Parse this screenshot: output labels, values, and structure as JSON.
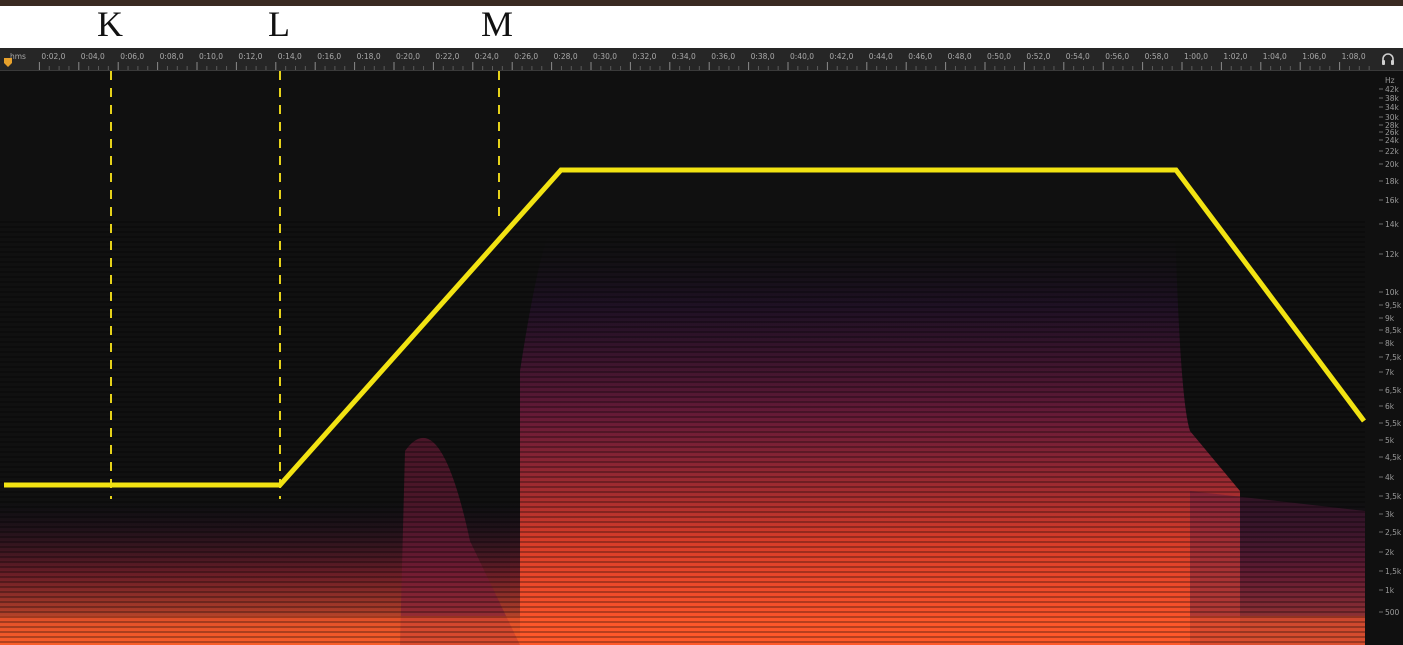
{
  "markers": [
    {
      "label": "K",
      "time": "0:05,0"
    },
    {
      "label": "L",
      "time": "0:14,0"
    },
    {
      "label": "M",
      "time": "0:25,0"
    }
  ],
  "ruler": {
    "unit": "hms",
    "ticks": [
      "0:02,0",
      "0:04,0",
      "0:06,0",
      "0:08,0",
      "0:10,0",
      "0:12,0",
      "0:14,0",
      "0:16,0",
      "0:18,0",
      "0:20,0",
      "0:22,0",
      "0:24,0",
      "0:26,0",
      "0:28,0",
      "0:30,0",
      "0:32,0",
      "0:34,0",
      "0:36,0",
      "0:38,0",
      "0:40,0",
      "0:42,0",
      "0:44,0",
      "0:46,0",
      "0:48,0",
      "0:50,0",
      "0:52,0",
      "0:54,0",
      "0:56,0",
      "0:58,0",
      "1:00,0",
      "1:02,0",
      "1:04,0",
      "1:06,0",
      "1:08,0"
    ]
  },
  "frequency_scale": {
    "unit": "Hz",
    "labels": [
      "42k",
      "38k",
      "34k",
      "30k",
      "28k",
      "26k",
      "24k",
      "22k",
      "20k",
      "18k",
      "16k",
      "14k",
      "12k",
      "10k",
      "9,5k",
      "9k",
      "8,5k",
      "8k",
      "7,5k",
      "7k",
      "6,5k",
      "6k",
      "5,5k",
      "5k",
      "4,5k",
      "4k",
      "3,5k",
      "3k",
      "2,5k",
      "2k",
      "1,5k",
      "1k",
      "500"
    ]
  },
  "filter_envelope": {
    "points": [
      {
        "time_s": 0,
        "freq_hz": "4k"
      },
      {
        "time_s": 14,
        "freq_hz": "4k"
      },
      {
        "time_s": 27,
        "freq_hz": "22k"
      },
      {
        "time_s": 59.5,
        "freq_hz": "22k"
      },
      {
        "time_s": 69,
        "freq_hz": "6k"
      }
    ]
  },
  "colors": {
    "envelope": "#f2e312",
    "marker_line": "#e6d21a",
    "background": "#101010",
    "ruler_bg": "#262626"
  },
  "icons": {
    "headphones": "headphones-icon",
    "playhead": "playhead-icon"
  }
}
